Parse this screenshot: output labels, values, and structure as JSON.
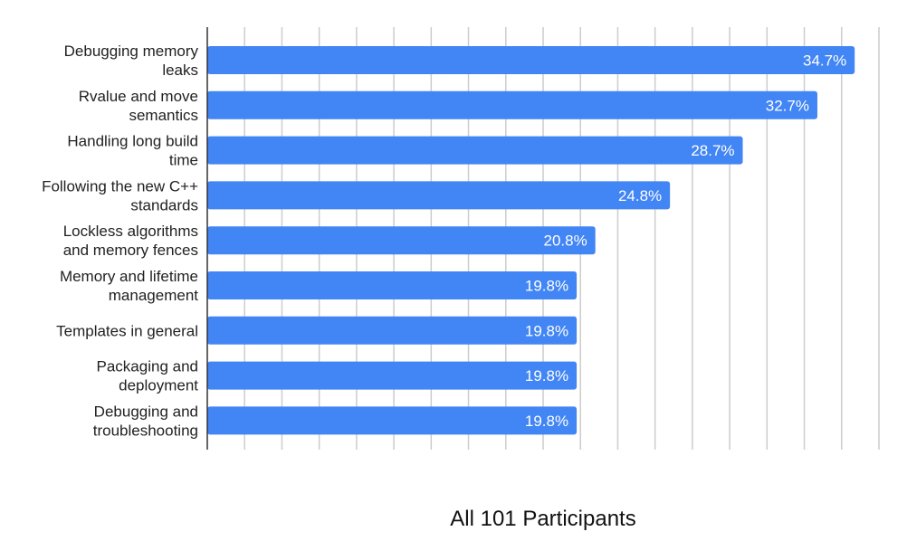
{
  "chart_data": {
    "type": "bar",
    "orientation": "horizontal",
    "categories": [
      [
        "Debugging memory",
        "leaks"
      ],
      [
        "Rvalue and move",
        "semantics"
      ],
      [
        "Handling long build",
        "time"
      ],
      [
        "Following the new C++",
        "standards"
      ],
      [
        "Lockless algorithms",
        "and memory fences"
      ],
      [
        "Memory and lifetime",
        "management"
      ],
      [
        "Templates in general"
      ],
      [
        "Packaging and",
        "deployment"
      ],
      [
        "Debugging and",
        "troubleshooting"
      ]
    ],
    "values": [
      34.7,
      32.7,
      28.7,
      24.8,
      20.8,
      19.8,
      19.8,
      19.8,
      19.8
    ],
    "data_labels": [
      "34.7%",
      "32.7%",
      "28.7%",
      "24.8%",
      "20.8%",
      "19.8%",
      "19.8%",
      "19.8%",
      "19.8%"
    ],
    "xlabel": "All 101 Participants",
    "xlim": [
      0,
      36
    ],
    "grid": true,
    "bar_color": "#4285f4",
    "grid_color": "#cccccc",
    "axis_color": "#333333"
  }
}
